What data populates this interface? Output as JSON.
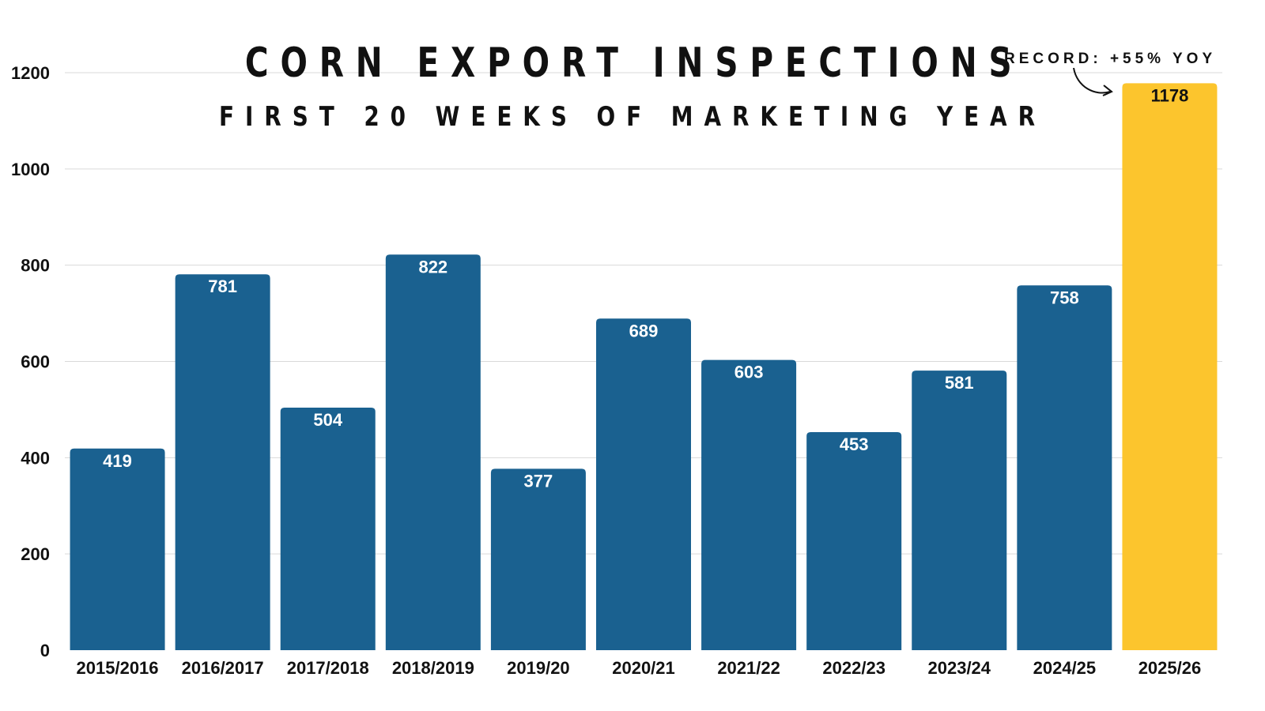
{
  "chart_data": {
    "type": "bar",
    "title": "CORN EXPORT INSPECTIONS",
    "subtitle": "FIRST 20 WEEKS OF MARKETING YEAR",
    "categories": [
      "2015/2016",
      "2016/2017",
      "2017/2018",
      "2018/2019",
      "2019/20",
      "2020/21",
      "2021/22",
      "2022/23",
      "2023/24",
      "2024/25",
      "2025/26"
    ],
    "values": [
      419,
      781,
      504,
      822,
      377,
      689,
      603,
      453,
      581,
      758,
      1178
    ],
    "data_labels": [
      "419",
      "781",
      "504",
      "822",
      "377",
      "689",
      "603",
      "453",
      "581",
      "758",
      "1178"
    ],
    "yticks": [
      "0",
      "200",
      "400",
      "600",
      "800",
      "1000",
      "1200"
    ],
    "ylim": [
      0,
      1200
    ],
    "grid": true,
    "annotation": "RECORD: +55% YOY",
    "highlight_index": 10,
    "colors": {
      "bar": "#1a6190",
      "highlight": "#fcc52d",
      "grid": "#d9d9d9",
      "label": "#ffffff",
      "highlight_label": "#111111"
    }
  }
}
